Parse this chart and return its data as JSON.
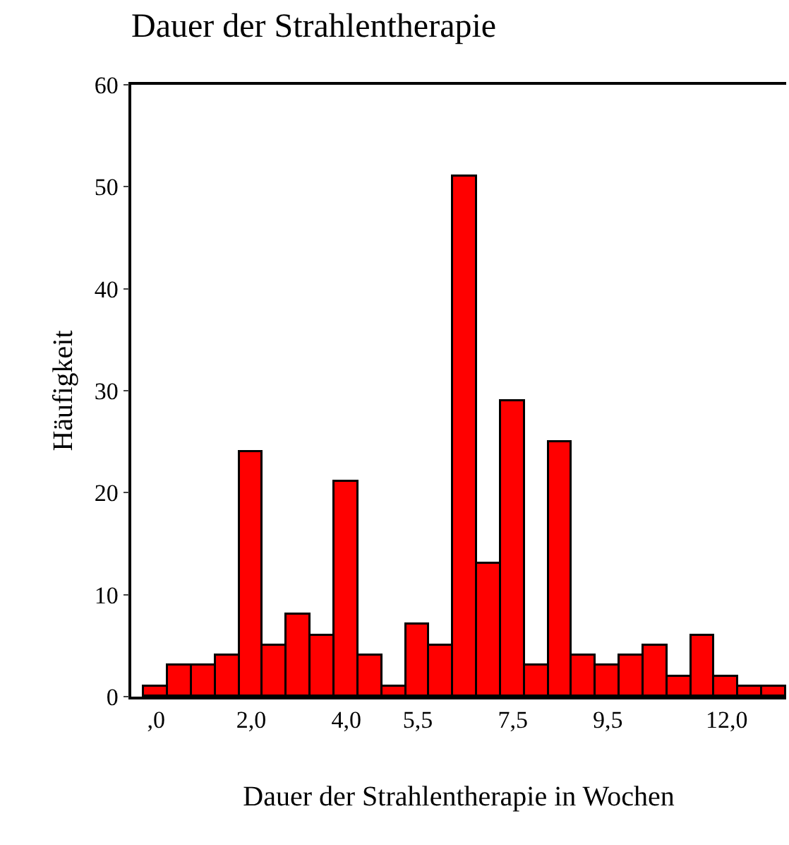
{
  "chart_data": {
    "type": "bar",
    "title": "Dauer der Strahlentherapie",
    "xlabel": "Dauer der Strahlentherapie in Wochen",
    "ylabel": "Häufigkeit",
    "categories": [
      ",0",
      null,
      null,
      null,
      "2,0",
      null,
      null,
      null,
      "4,0",
      null,
      null,
      "5,5",
      null,
      null,
      null,
      "7,5",
      null,
      null,
      null,
      "9,5",
      null,
      null,
      null,
      null,
      "12,0",
      null,
      null
    ],
    "values": [
      1,
      3,
      3,
      4,
      24,
      5,
      8,
      6,
      21,
      4,
      1,
      7,
      5,
      51,
      13,
      29,
      3,
      25,
      4,
      3,
      4,
      5,
      2,
      6,
      2,
      1,
      1
    ],
    "color": "#ff0000",
    "ylim": [
      0,
      60
    ],
    "yticks": [
      0,
      10,
      20,
      30,
      40,
      50,
      60
    ]
  }
}
